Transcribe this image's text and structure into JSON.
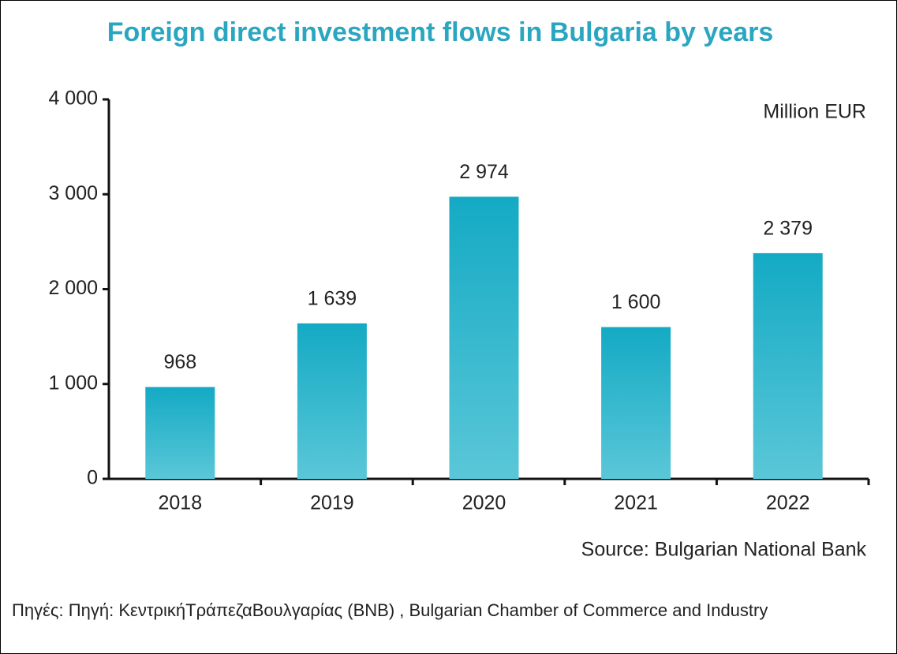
{
  "chart_data": {
    "type": "bar",
    "title": "Foreign direct investment flows in Bulgaria by years",
    "unit_label": "Million EUR",
    "source": "Source: Bulgarian National Bank",
    "categories": [
      "2018",
      "2019",
      "2020",
      "2021",
      "2022"
    ],
    "values": [
      968,
      1639,
      2974,
      1600,
      2379
    ],
    "value_labels": [
      "968",
      "1 639",
      "2 974",
      "1 600",
      "2 379"
    ],
    "color": "#14aac4",
    "ylim": [
      0,
      4000
    ],
    "yticks": [
      0,
      {
        "value": 1000,
        "label": "1 000"
      },
      {
        "value": 2000,
        "label": "2 000"
      },
      {
        "value": 3000,
        "label": "3 000"
      },
      {
        "value": 4000,
        "label": "4 000"
      }
    ],
    "grid": false
  },
  "footer": "Πηγές: Πηγή: ΚεντρικήΤράπεζαΒουλγαρίας (BNB) , Bulgarian Chamber of Commerce and Industry"
}
